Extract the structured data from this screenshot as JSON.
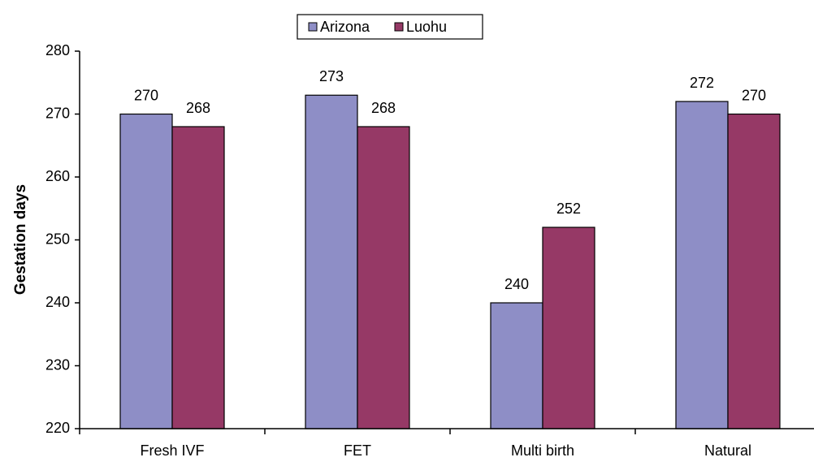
{
  "chart_data": {
    "type": "bar",
    "categories": [
      "Fresh IVF",
      "FET",
      "Multi birth",
      "Natural"
    ],
    "series": [
      {
        "name": "Arizona",
        "color": "#8e8ec6",
        "values": [
          270,
          273,
          240,
          272
        ]
      },
      {
        "name": "Luohu",
        "color": "#963966",
        "values": [
          268,
          268,
          252,
          270
        ]
      }
    ],
    "y_label": "Gestation days",
    "ylim": [
      220,
      280
    ],
    "yticks": [
      220,
      230,
      240,
      250,
      260,
      270,
      280
    ],
    "grid": false,
    "legend": "top"
  }
}
